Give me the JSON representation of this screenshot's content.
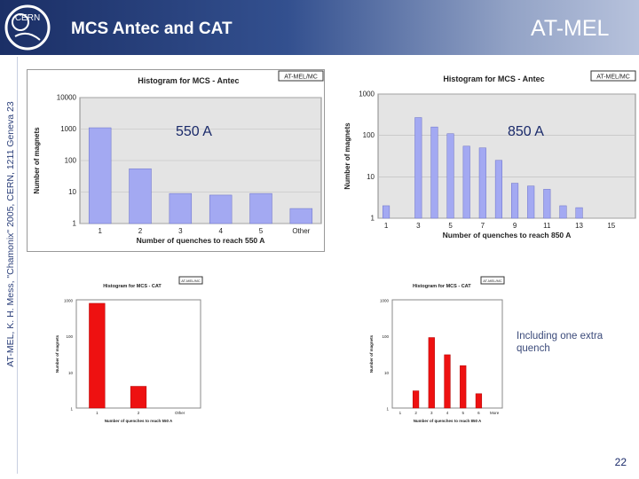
{
  "slide": {
    "title": "MCS Antec and CAT",
    "section": "AT-MEL",
    "sidebar": "AT-MEL, K. H. Mess, \"Chamonix\" 2005, CERN, 1211 Geneva 23",
    "logo_text": "CERN",
    "overlay_550": "550 A",
    "overlay_850": "850 A",
    "note": "Including one extra quench",
    "page_number": "22"
  },
  "colors": {
    "header_dark": "#1b2f66",
    "bar_blue": "#a3a9f2",
    "bar_red": "#ee1111",
    "plot_bg": "#e4e4e4",
    "text_dark": "#1a2a6a"
  },
  "chart_data": [
    {
      "id": "antec-550",
      "type": "bar",
      "title": "Histogram for MCS - Antec",
      "tag": "AT-MEL/MC",
      "xlabel": "Number of quenches to reach 550 A",
      "ylabel": "Number of magnets",
      "yscale": "log",
      "ylim": [
        1,
        10000
      ],
      "yticks": [
        "10000",
        "1000",
        "100",
        "10",
        "1"
      ],
      "categories": [
        "1",
        "2",
        "3",
        "4",
        "5",
        "Other"
      ],
      "values": [
        1100,
        55,
        9,
        8,
        9,
        3
      ],
      "color": "#a3a9f2"
    },
    {
      "id": "antec-850",
      "type": "bar",
      "title": "Histogram for MCS - Antec",
      "tag": "AT-MEL/MC",
      "xlabel": "Number of quenches to reach 850 A",
      "ylabel": "Number of magnets",
      "yscale": "log",
      "ylim": [
        1,
        1000
      ],
      "yticks": [
        "1000",
        "100",
        "10",
        "1"
      ],
      "categories": [
        "1",
        "2",
        "3",
        "4",
        "5",
        "6",
        "7",
        "8",
        "9",
        "10",
        "11",
        "12",
        "13",
        "14",
        "15",
        "16"
      ],
      "xtick_labels": [
        "1",
        "",
        "3",
        "",
        "5",
        "",
        "7",
        "",
        "9",
        "",
        "11",
        "",
        "13",
        "",
        "15",
        ""
      ],
      "values": [
        2,
        0,
        270,
        160,
        110,
        55,
        50,
        25,
        7,
        6,
        5,
        2,
        1.8,
        0,
        0,
        1
      ],
      "color": "#a3a9f2"
    },
    {
      "id": "cat-550",
      "type": "bar",
      "title": "Histogram for MCS - CAT",
      "tag": "AT-MEL/MC",
      "xlabel": "Number of quenches to reach 550 A",
      "ylabel": "Number of magnets",
      "yscale": "log",
      "ylim": [
        1,
        1000
      ],
      "yticks": [
        "1000",
        "100",
        "10",
        "1"
      ],
      "categories": [
        "1",
        "2",
        "Other"
      ],
      "values": [
        800,
        4,
        0
      ],
      "color": "#ee1111"
    },
    {
      "id": "cat-850",
      "type": "bar",
      "title": "Histogram for MCS - CAT",
      "tag": "AT-MEL/MC",
      "xlabel": "Number of quenches to reach 850 A",
      "ylabel": "Number of magnets",
      "yscale": "log",
      "ylim": [
        1,
        1000
      ],
      "yticks": [
        "1000",
        "100",
        "10",
        "1"
      ],
      "categories": [
        "1",
        "2",
        "3",
        "4",
        "5",
        "6",
        "More"
      ],
      "values": [
        0,
        3,
        90,
        30,
        15,
        2.5,
        0
      ],
      "color": "#ee1111"
    }
  ]
}
